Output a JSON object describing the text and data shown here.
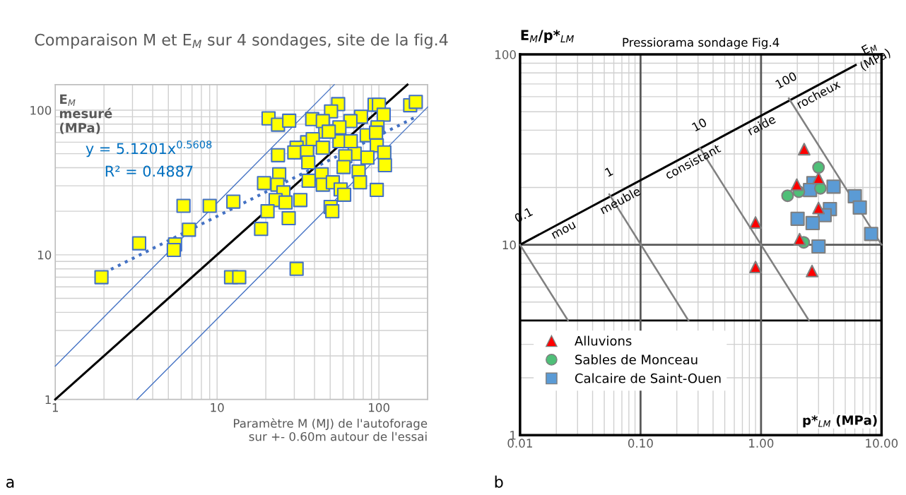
{
  "chart_data": [
    {
      "type": "scatter",
      "title": "Comparaison M et E$_{M}$ sur 4 sondages, site de la fig.4",
      "xlabel": "Paramètre M (MJ) de l'autoforage\nsur +- 0.60m autour de l'essai",
      "ylabel": "E$_{M}$\nmesuré\n(MPa)",
      "log": "xy",
      "xlim": [
        1,
        200
      ],
      "ylim": [
        1,
        150
      ],
      "xticks": [
        1,
        10,
        100
      ],
      "yticks": [
        1,
        10,
        100
      ],
      "grid": true,
      "marker": "square",
      "series": [
        {
          "color": "#ffff00",
          "x": [
            1.93,
            3.3,
            5.5,
            5.4,
            6.7,
            6.2,
            9.0,
            12.6,
            12.2,
            13.7,
            20.8,
            23.8,
            27.9,
            38.7,
            56,
            50.6,
            94,
            100,
            156,
            169,
            107,
            77.5,
            66.7,
            57,
            46.6,
            45,
            98,
            84,
            96,
            36,
            39,
            57,
            45,
            31,
            30,
            23.8,
            36,
            70.8,
            62,
            97,
            108,
            85,
            36.6,
            60.5,
            75,
            109,
            24.2,
            19.5,
            23.6,
            44.3,
            36.8,
            45,
            51.9,
            76.4,
            58,
            61,
            97,
            25.7,
            23,
            26.5,
            32.7,
            20.5,
            27.7,
            18.7,
            50.3,
            51.5,
            31,
            49,
            67
          ],
          "values": [
            7,
            12,
            11.8,
            10.8,
            14.9,
            21.8,
            21.8,
            23.3,
            7,
            7,
            87.7,
            79.3,
            84.5,
            86.7,
            110,
            98,
            109,
            109,
            108,
            114,
            93,
            90,
            84,
            76,
            71,
            84,
            76,
            67,
            70,
            60,
            63,
            61,
            55,
            55,
            51,
            48.8,
            51.5,
            50,
            48,
            57,
            51,
            47,
            43.5,
            40.4,
            37.7,
            41.6,
            36,
            31.3,
            30.5,
            36,
            32.5,
            30.5,
            31.7,
            31.7,
            28.3,
            26,
            28.1,
            27,
            23.9,
            23,
            23.9,
            20,
            17.9,
            15.1,
            21.4,
            20,
            8.0,
            71,
            61
          ]
        },
        {
          "type": "line",
          "color": "#4472c4",
          "line_style": "dotted",
          "marker": "none",
          "x": [
            2,
            170
          ],
          "values": [
            7.5,
            90
          ]
        },
        {
          "type": "line",
          "color": "#000000",
          "line_style": "solid",
          "marker": "none",
          "x": [
            1,
            150
          ],
          "values": [
            1,
            150
          ]
        },
        {
          "type": "line",
          "color": "#4472c4",
          "line_style": "solid",
          "marker": "none",
          "x": [
            1,
            53
          ],
          "values": [
            1.7,
            150
          ]
        },
        {
          "type": "line",
          "color": "#4472c4",
          "line_style": "solid",
          "marker": "none",
          "x": [
            3.2,
            200
          ],
          "values": [
            1,
            105
          ]
        }
      ],
      "annotations": [
        "y = 5.1201x$^{0.5608}$",
        "R² = 0.4887",
        "a"
      ]
    },
    {
      "type": "scatter",
      "title": "Pressiorama sondage Fig.4",
      "xlabel": "p*$_{LM}$ (MPa)",
      "ylabel": "E$_{M}$/p*$_{LM}$",
      "log": "xy",
      "xlim": [
        0.01,
        10
      ],
      "ylim": [
        1,
        100
      ],
      "xticks": [
        {
          "value": 0.01,
          "label": "0.01"
        },
        {
          "value": 0.1,
          "label": "0.10"
        },
        {
          "value": 1,
          "label": "1.00"
        },
        {
          "value": 10,
          "label": "10.00"
        }
      ],
      "yticks": [
        1,
        10,
        100
      ],
      "grid": true,
      "legend": "bottom left",
      "ref_lines": [
        {
          "axis": "y",
          "value": 4,
          "color": "#000000"
        },
        {
          "axis": "y",
          "value": 10,
          "color": "#595959"
        },
        {
          "axis": "x",
          "value": 0.1,
          "color": "#595959"
        },
        {
          "axis": "x",
          "value": 1,
          "color": "#595959"
        }
      ],
      "series": [
        {
          "name": "Alluvions",
          "color": "#ff0000",
          "marker": "triangle",
          "x": [
            2.28,
            1.98,
            3.0,
            3.0,
            0.9,
            2.09,
            0.9,
            2.65
          ],
          "values": [
            31.8,
            20.7,
            22.4,
            15.6,
            13.1,
            10.7,
            7.64,
            7.28
          ]
        },
        {
          "name": "Sables de Monceau",
          "color": "#4fbf78",
          "marker": "circle",
          "x": [
            3.0,
            1.66,
            2.06,
            3.11,
            2.26
          ],
          "values": [
            25.5,
            18.1,
            19.0,
            19.8,
            10.3
          ]
        },
        {
          "name": "Calcaire de Saint-Ouen",
          "color": "#5b9bd5",
          "marker": "square",
          "x": [
            2.72,
            2.55,
            4.0,
            6.0,
            6.6,
            3.73,
            3.37,
            2.01,
            2.68,
            8.2,
            3.0
          ],
          "values": [
            21.1,
            19.4,
            20.2,
            18.0,
            15.7,
            15.4,
            14.3,
            13.7,
            13.0,
            11.4,
            9.8
          ]
        },
        {
          "type": "line",
          "color": "#000000",
          "line_style": "solid",
          "marker": "none",
          "x": [
            0.01,
            6.1
          ],
          "values": [
            10,
            88
          ]
        },
        {
          "type": "line",
          "color": "#808080",
          "line_style": "solid",
          "marker": "none",
          "x": [
            0.01,
            0.025
          ],
          "values": [
            10,
            4
          ]
        },
        {
          "type": "line",
          "color": "#808080",
          "line_style": "solid",
          "marker": "none",
          "x": [
            0.055,
            0.25
          ],
          "values": [
            18.4,
            4
          ]
        },
        {
          "type": "line",
          "color": "#808080",
          "line_style": "solid",
          "marker": "none",
          "x": [
            0.31,
            2.5
          ],
          "values": [
            32.3,
            4
          ]
        },
        {
          "type": "line",
          "color": "#808080",
          "line_style": "solid",
          "marker": "none",
          "x": [
            1.7,
            10
          ],
          "values": [
            58.8,
            10
          ]
        }
      ],
      "annotations": [
        "0.1",
        "1",
        "10",
        "100",
        "mou",
        "meuble",
        "consistant",
        "raide",
        "rocheux",
        "E$_{M}$\n(MPa)",
        "b"
      ]
    }
  ]
}
